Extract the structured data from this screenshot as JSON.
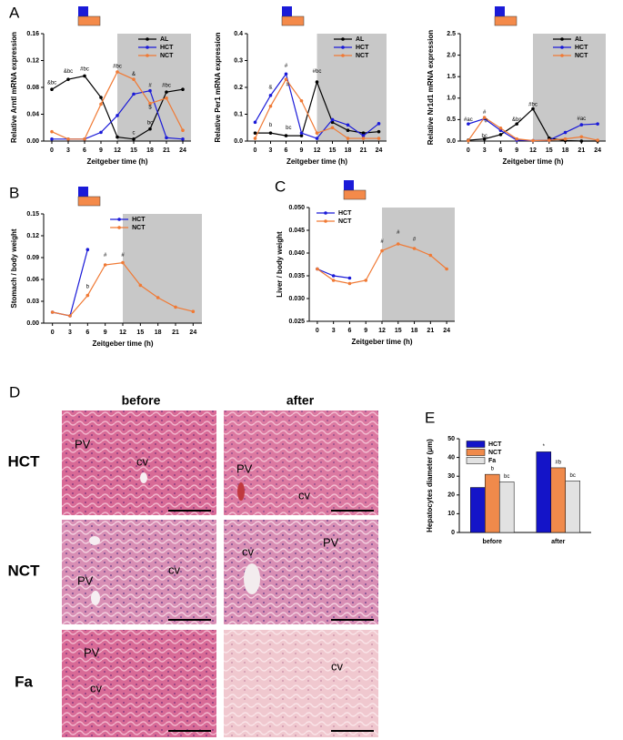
{
  "chart_data": [
    {
      "type": "line",
      "panel": "A",
      "ylabel": "Relative Arntl mRNA expression",
      "xlabel": "Zeitgeber time (h)",
      "x": [
        0,
        3,
        6,
        9,
        12,
        15,
        18,
        21,
        24
      ],
      "xlim": [
        -1.5,
        25.5
      ],
      "xticks": [
        0,
        3,
        6,
        9,
        12,
        15,
        18,
        21,
        24
      ],
      "ylim": [
        0,
        0.16
      ],
      "yticks": [
        {
          "value": 0,
          "label": "0.00"
        },
        0.04,
        0.08,
        0.12,
        0.16
      ],
      "dark_phase": [
        12,
        24
      ],
      "legend": "upper right",
      "series": [
        {
          "name": "AL",
          "color": "#000000",
          "values": [
            0.077,
            0.092,
            0.097,
            0.065,
            0.006,
            0.003,
            0.018,
            0.073,
            0.077
          ]
        },
        {
          "name": "HCT",
          "color": "#1a1ad8",
          "values": [
            0.003,
            0.003,
            0.003,
            0.013,
            0.038,
            0.07,
            0.075,
            0.005,
            0.003
          ]
        },
        {
          "name": "NCT",
          "color": "#f07a35",
          "values": [
            0.014,
            0.003,
            0.003,
            0.055,
            0.103,
            0.092,
            0.056,
            0.064,
            0.016
          ]
        }
      ],
      "annotations": [
        {
          "text": "&bc",
          "x": 0,
          "y": 0.087
        },
        {
          "text": "&bc",
          "x": 3,
          "y": 0.104
        },
        {
          "text": "#bc",
          "x": 6,
          "y": 0.107
        },
        {
          "text": "#bc",
          "x": 12,
          "y": 0.111
        },
        {
          "text": "&",
          "x": 15,
          "y": 0.1
        },
        {
          "text": "#",
          "x": 18,
          "y": 0.083
        },
        {
          "text": "$",
          "x": 18,
          "y": 0.05
        },
        {
          "text": "bc",
          "x": 18,
          "y": 0.027
        },
        {
          "text": "c",
          "x": 15,
          "y": 0.012
        },
        {
          "text": "#bc",
          "x": 21,
          "y": 0.083
        }
      ]
    },
    {
      "type": "line",
      "ylabel": "Relative Per1 mRNA expression",
      "xlabel": "Zeitgeber time (h)",
      "x": [
        0,
        3,
        6,
        9,
        12,
        15,
        18,
        21,
        24
      ],
      "xlim": [
        -1.5,
        25.5
      ],
      "xticks": [
        0,
        3,
        6,
        9,
        12,
        15,
        18,
        21,
        24
      ],
      "ylim": [
        0,
        0.4
      ],
      "yticks": [
        {
          "value": 0,
          "label": "0.0"
        },
        0.1,
        0.2,
        0.3,
        0.4
      ],
      "dark_phase": [
        12,
        24
      ],
      "legend": "upper right",
      "series": [
        {
          "name": "AL",
          "color": "#000000",
          "values": [
            0.03,
            0.03,
            0.02,
            0.02,
            0.22,
            0.07,
            0.04,
            0.03,
            0.035
          ]
        },
        {
          "name": "HCT",
          "color": "#1a1ad8",
          "values": [
            0.07,
            0.17,
            0.25,
            0.03,
            0.01,
            0.08,
            0.06,
            0.02,
            0.065
          ]
        },
        {
          "name": "NCT",
          "color": "#f07a35",
          "values": [
            0.01,
            0.13,
            0.23,
            0.15,
            0.03,
            0.05,
            0.01,
            0.01,
            0.01
          ]
        }
      ],
      "annotations": [
        {
          "text": "&",
          "x": 3,
          "y": 0.2
        },
        {
          "text": "b",
          "x": 3,
          "y": 0.06
        },
        {
          "text": "#",
          "x": 6,
          "y": 0.28
        },
        {
          "text": "#",
          "x": 6.3,
          "y": 0.21
        },
        {
          "text": "bc",
          "x": 6.5,
          "y": 0.05
        },
        {
          "text": "#bc",
          "x": 12,
          "y": 0.26
        }
      ]
    },
    {
      "type": "line",
      "ylabel": "Relative Nr1d1 mRNA expression",
      "xlabel": "Zeitgeber time (h)",
      "x": [
        0,
        3,
        6,
        9,
        12,
        15,
        18,
        21,
        24
      ],
      "xlim": [
        -1.5,
        25.5
      ],
      "xticks": [
        0,
        3,
        6,
        9,
        12,
        15,
        18,
        21,
        24
      ],
      "ylim": [
        0,
        2.5
      ],
      "yticks": [
        {
          "value": 0,
          "label": "0.0"
        },
        0.5,
        {
          "value": 1,
          "label": "1.0"
        },
        1.5,
        {
          "value": 2,
          "label": "2.0"
        },
        2.5
      ],
      "dark_phase": [
        12,
        24
      ],
      "legend": "upper right",
      "series": [
        {
          "name": "AL",
          "color": "#000000",
          "values": [
            0.02,
            0.05,
            0.15,
            0.4,
            0.75,
            0.07,
            0.01,
            0.0,
            0.0
          ]
        },
        {
          "name": "HCT",
          "color": "#1a1ad8",
          "values": [
            0.4,
            0.52,
            0.25,
            0.02,
            0.01,
            0.02,
            0.2,
            0.38,
            0.4
          ]
        },
        {
          "name": "NCT",
          "color": "#f07a35",
          "values": [
            0.01,
            0.55,
            0.3,
            0.05,
            0.01,
            0.02,
            0.05,
            0.1,
            0.02
          ]
        }
      ],
      "annotations": [
        {
          "text": "#ac",
          "x": 0,
          "y": 0.5
        },
        {
          "text": "#",
          "x": 3,
          "y": 0.67
        },
        {
          "text": "#",
          "x": 3.3,
          "y": 0.47
        },
        {
          "text": "bc",
          "x": 3,
          "y": 0.12
        },
        {
          "text": "&bc",
          "x": 9,
          "y": 0.5
        },
        {
          "text": "#bc",
          "x": 12,
          "y": 0.85
        },
        {
          "text": "#ac",
          "x": 21,
          "y": 0.52
        }
      ]
    },
    {
      "type": "line",
      "panel": "B",
      "ylabel": "Stomach / body weight",
      "xlabel": "Zeitgeber time (h)",
      "x": [
        0,
        3,
        6,
        9,
        12,
        15,
        18,
        21,
        24
      ],
      "xlim": [
        -1.5,
        25.5
      ],
      "xticks": [
        0,
        3,
        6,
        9,
        12,
        15,
        18,
        21,
        24
      ],
      "ylim": [
        0,
        0.15
      ],
      "yticks": [
        {
          "value": 0,
          "label": "0.00"
        },
        0.03,
        0.06,
        0.09,
        0.12,
        0.15
      ],
      "dark_phase": [
        12,
        24
      ],
      "legend": "upper center",
      "series": [
        {
          "name": "HCT",
          "color": "#1a1ad8",
          "values": [
            0.015,
            0.01,
            0.101,
            null,
            null,
            null,
            null,
            null,
            null
          ]
        },
        {
          "name": "NCT",
          "color": "#f07a35",
          "values": [
            0.015,
            0.01,
            0.038,
            0.08,
            0.083,
            0.052,
            0.035,
            0.022,
            0.016
          ]
        }
      ],
      "annotations": [
        {
          "text": "b",
          "x": 6,
          "y": 0.05
        },
        {
          "text": "#",
          "x": 9,
          "y": 0.093
        },
        {
          "text": "#",
          "x": 12,
          "y": 0.093
        }
      ]
    },
    {
      "type": "line",
      "panel": "C",
      "ylabel": "Liver / body weight",
      "xlabel": "Zeitgeber time (h)",
      "x": [
        0,
        3,
        6,
        9,
        12,
        15,
        18,
        21,
        24
      ],
      "xlim": [
        -1.5,
        25.5
      ],
      "xticks": [
        0,
        3,
        6,
        9,
        12,
        15,
        18,
        21,
        24
      ],
      "ylim": [
        0.025,
        0.05
      ],
      "yticks": [
        0.025,
        {
          "value": 0.03,
          "label": "0.030"
        },
        0.035,
        {
          "value": 0.04,
          "label": "0.040"
        },
        0.045,
        {
          "value": 0.05,
          "label": "0.050"
        }
      ],
      "dark_phase": [
        12,
        24
      ],
      "legend": "upper left",
      "series": [
        {
          "name": "HCT",
          "color": "#1a1ad8",
          "values": [
            0.0365,
            0.035,
            0.0345,
            null,
            null,
            null,
            null,
            null,
            null
          ]
        },
        {
          "name": "NCT",
          "color": "#f07a35",
          "values": [
            0.0365,
            0.034,
            0.0333,
            0.034,
            0.0405,
            0.042,
            0.041,
            0.0395,
            0.0365
          ]
        }
      ],
      "annotations": [
        {
          "text": "#",
          "x": 12,
          "y": 0.0425
        },
        {
          "text": "#",
          "x": 15,
          "y": 0.0445
        },
        {
          "text": "#",
          "x": 18,
          "y": 0.043
        }
      ]
    },
    {
      "type": "bar",
      "panel": "E",
      "ylabel": "Hepatocytes diameter (μm)",
      "categories": [
        "before",
        "after"
      ],
      "ylim": [
        0,
        50
      ],
      "yticks": [
        0,
        10,
        20,
        30,
        40,
        50
      ],
      "legend": "upper left",
      "series": [
        {
          "name": "HCT",
          "color": "#1414c8",
          "values": [
            24,
            43
          ]
        },
        {
          "name": "NCT",
          "color": "#f08a4b",
          "values": [
            31,
            34.5
          ]
        },
        {
          "name": "Fa",
          "color": "#e2e2e2",
          "values": [
            27,
            27.5
          ]
        }
      ],
      "annotations": [
        {
          "text": "b",
          "category": 0,
          "series": 1
        },
        {
          "text": "bc",
          "category": 0,
          "series": 2
        },
        {
          "text": "*",
          "category": 1,
          "series": 0
        },
        {
          "text": "#b",
          "category": 1,
          "series": 1
        },
        {
          "text": "bc",
          "category": 1,
          "series": 2
        }
      ]
    }
  ],
  "histology": {
    "panel": "D",
    "columns": [
      "before",
      "after"
    ],
    "rows": [
      "HCT",
      "NCT",
      "Fa"
    ],
    "labels": [
      [
        [
          "PV",
          "cv"
        ],
        [
          "PV",
          "cv"
        ]
      ],
      [
        [
          "PV",
          "cv"
        ],
        [
          "cv",
          "PV"
        ]
      ],
      [
        [
          "PV",
          "cv"
        ],
        [
          "cv"
        ]
      ]
    ]
  }
}
